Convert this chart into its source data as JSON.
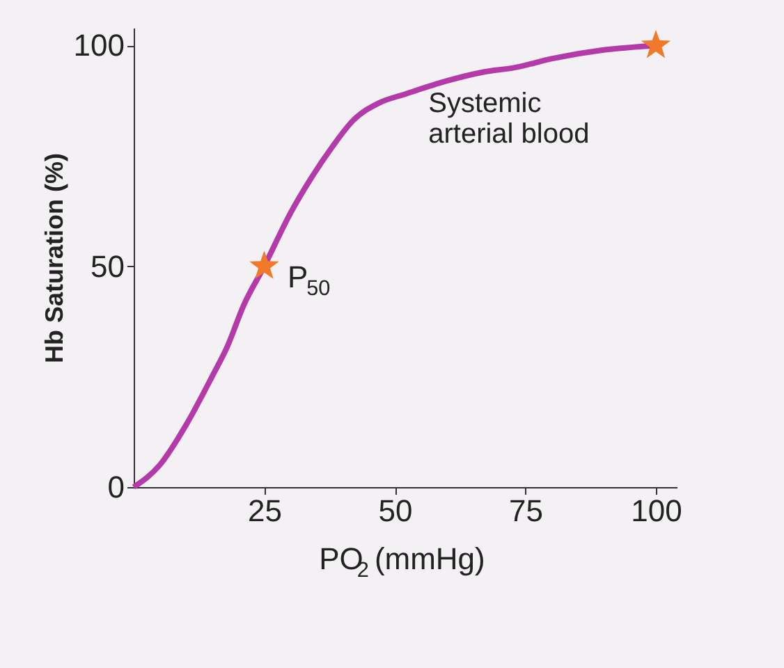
{
  "chart_data": {
    "type": "line",
    "xlabel": "PO$_{2}$ (mmHg)",
    "ylabel": "Hb Saturation (%)",
    "xlim": [
      0,
      104
    ],
    "ylim": [
      0,
      104
    ],
    "xticks": [
      25,
      50,
      75,
      100
    ],
    "yticks": [
      0,
      50,
      100
    ],
    "grid": false,
    "series": [
      {
        "type": "line",
        "color": "#b43aaa",
        "x": [
          0,
          5,
          10,
          15,
          18,
          21,
          25,
          30,
          34,
          38,
          42,
          47,
          52,
          60,
          67,
          73,
          80,
          90,
          100
        ],
        "values": [
          0,
          5,
          14,
          25,
          32,
          41,
          50,
          62,
          70,
          77,
          83,
          87,
          89,
          92,
          94,
          95,
          97,
          99,
          100
        ],
        "marker": "none"
      },
      {
        "type": "scatter",
        "color": "#f07a2a",
        "x": [
          25,
          100
        ],
        "values": [
          50,
          100
        ],
        "marker": "star"
      }
    ],
    "annotations": [
      {
        "text": "P$_{50}$",
        "x": 25,
        "y": 50
      },
      {
        "text": "Systemic\narterial blood",
        "x": 100,
        "y": 100
      }
    ]
  }
}
